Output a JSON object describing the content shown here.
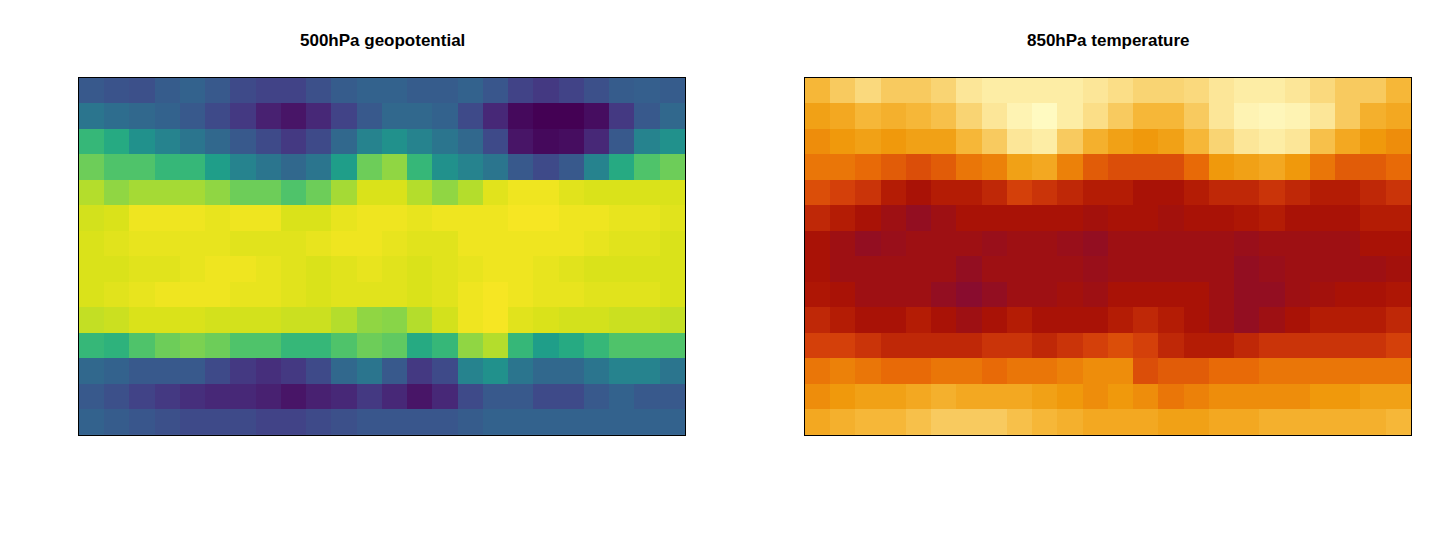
{
  "chart_data": [
    {
      "type": "heatmap",
      "title": "500hPa geopotential",
      "color": "viridis",
      "tick_labels": false,
      "grid": false,
      "zlim": [
        5000,
        5900
      ],
      "z": [
        [
          5250,
          5230,
          5220,
          5260,
          5280,
          5250,
          5200,
          5180,
          5180,
          5220,
          5260,
          5280,
          5280,
          5260,
          5260,
          5280,
          5240,
          5180,
          5150,
          5180,
          5220,
          5260,
          5270,
          5260
        ],
        [
          5350,
          5320,
          5300,
          5280,
          5250,
          5200,
          5150,
          5080,
          5050,
          5100,
          5180,
          5250,
          5300,
          5300,
          5280,
          5200,
          5100,
          5020,
          5000,
          5000,
          5030,
          5150,
          5250,
          5300
        ],
        [
          5600,
          5550,
          5450,
          5400,
          5350,
          5300,
          5250,
          5200,
          5150,
          5200,
          5300,
          5400,
          5450,
          5400,
          5350,
          5300,
          5200,
          5050,
          5020,
          5030,
          5100,
          5250,
          5400,
          5450
        ],
        [
          5700,
          5650,
          5650,
          5600,
          5600,
          5500,
          5400,
          5350,
          5300,
          5350,
          5500,
          5700,
          5750,
          5600,
          5450,
          5400,
          5350,
          5250,
          5200,
          5250,
          5400,
          5550,
          5650,
          5700
        ],
        [
          5800,
          5750,
          5780,
          5780,
          5780,
          5750,
          5700,
          5700,
          5650,
          5700,
          5780,
          5850,
          5850,
          5800,
          5750,
          5800,
          5860,
          5880,
          5880,
          5860,
          5850,
          5850,
          5850,
          5850
        ],
        [
          5840,
          5850,
          5880,
          5880,
          5880,
          5870,
          5880,
          5880,
          5850,
          5850,
          5870,
          5880,
          5880,
          5870,
          5880,
          5880,
          5880,
          5890,
          5890,
          5880,
          5880,
          5870,
          5870,
          5860
        ],
        [
          5850,
          5860,
          5870,
          5870,
          5870,
          5870,
          5860,
          5860,
          5860,
          5870,
          5880,
          5880,
          5870,
          5860,
          5860,
          5880,
          5880,
          5880,
          5880,
          5880,
          5870,
          5860,
          5860,
          5850
        ],
        [
          5850,
          5850,
          5860,
          5860,
          5870,
          5880,
          5880,
          5870,
          5860,
          5850,
          5860,
          5870,
          5860,
          5850,
          5860,
          5870,
          5880,
          5880,
          5870,
          5860,
          5850,
          5850,
          5850,
          5850
        ],
        [
          5850,
          5860,
          5870,
          5880,
          5880,
          5880,
          5870,
          5870,
          5860,
          5850,
          5860,
          5860,
          5860,
          5850,
          5860,
          5880,
          5890,
          5880,
          5870,
          5870,
          5860,
          5860,
          5860,
          5850
        ],
        [
          5820,
          5830,
          5850,
          5850,
          5850,
          5840,
          5840,
          5840,
          5830,
          5830,
          5800,
          5750,
          5740,
          5800,
          5840,
          5880,
          5890,
          5860,
          5850,
          5840,
          5840,
          5830,
          5830,
          5820
        ],
        [
          5600,
          5580,
          5650,
          5700,
          5720,
          5700,
          5650,
          5650,
          5600,
          5600,
          5650,
          5700,
          5680,
          5550,
          5600,
          5750,
          5800,
          5600,
          5500,
          5550,
          5600,
          5650,
          5650,
          5650
        ],
        [
          5300,
          5280,
          5250,
          5250,
          5250,
          5200,
          5150,
          5120,
          5150,
          5200,
          5300,
          5350,
          5250,
          5150,
          5200,
          5400,
          5450,
          5350,
          5300,
          5300,
          5350,
          5400,
          5400,
          5350
        ],
        [
          5250,
          5220,
          5180,
          5150,
          5120,
          5100,
          5100,
          5080,
          5050,
          5080,
          5100,
          5150,
          5100,
          5050,
          5100,
          5200,
          5250,
          5250,
          5200,
          5200,
          5250,
          5280,
          5250,
          5250
        ],
        [
          5280,
          5260,
          5240,
          5220,
          5200,
          5200,
          5200,
          5180,
          5180,
          5200,
          5220,
          5240,
          5240,
          5240,
          5240,
          5260,
          5280,
          5280,
          5280,
          5280,
          5280,
          5280,
          5280,
          5280
        ]
      ]
    },
    {
      "type": "heatmap",
      "title": "850hPa temperature",
      "color": "heat",
      "tick_labels": false,
      "grid": false,
      "zlim": [
        245,
        300
      ],
      "z": [
        [
          262,
          258,
          255,
          258,
          258,
          256,
          252,
          250,
          250,
          250,
          250,
          252,
          254,
          256,
          256,
          255,
          252,
          250,
          250,
          252,
          255,
          258,
          258,
          262
        ],
        [
          268,
          266,
          262,
          264,
          262,
          260,
          256,
          252,
          248,
          246,
          250,
          254,
          258,
          262,
          262,
          258,
          252,
          248,
          247,
          248,
          252,
          258,
          264,
          266
        ],
        [
          272,
          270,
          268,
          270,
          268,
          268,
          262,
          258,
          252,
          250,
          258,
          264,
          268,
          270,
          268,
          262,
          256,
          252,
          250,
          252,
          260,
          266,
          270,
          272
        ],
        [
          276,
          276,
          278,
          280,
          282,
          280,
          276,
          274,
          268,
          266,
          274,
          280,
          282,
          282,
          282,
          278,
          270,
          268,
          266,
          270,
          276,
          280,
          280,
          278
        ],
        [
          282,
          284,
          286,
          290,
          292,
          290,
          290,
          288,
          284,
          286,
          288,
          290,
          290,
          292,
          292,
          290,
          288,
          288,
          286,
          288,
          290,
          290,
          288,
          286
        ],
        [
          288,
          290,
          292,
          294,
          296,
          294,
          292,
          292,
          292,
          292,
          292,
          293,
          292,
          292,
          293,
          292,
          292,
          291,
          290,
          292,
          292,
          292,
          290,
          290
        ],
        [
          292,
          294,
          296,
          295,
          294,
          294,
          294,
          295,
          294,
          294,
          295,
          296,
          294,
          294,
          294,
          294,
          294,
          295,
          294,
          294,
          294,
          294,
          292,
          292
        ],
        [
          292,
          294,
          294,
          294,
          294,
          294,
          296,
          294,
          294,
          294,
          294,
          295,
          294,
          294,
          294,
          294,
          294,
          296,
          295,
          294,
          294,
          294,
          294,
          293
        ],
        [
          291,
          292,
          294,
          294,
          294,
          296,
          298,
          296,
          294,
          294,
          293,
          294,
          292,
          292,
          292,
          292,
          294,
          296,
          296,
          294,
          293,
          292,
          292,
          291
        ],
        [
          288,
          290,
          292,
          292,
          290,
          292,
          294,
          292,
          290,
          292,
          292,
          292,
          290,
          288,
          290,
          292,
          294,
          296,
          294,
          292,
          290,
          290,
          290,
          288
        ],
        [
          284,
          284,
          286,
          288,
          288,
          288,
          288,
          286,
          286,
          288,
          286,
          284,
          282,
          284,
          288,
          290,
          290,
          288,
          286,
          286,
          286,
          286,
          286,
          284
        ],
        [
          276,
          274,
          276,
          278,
          278,
          276,
          276,
          278,
          276,
          276,
          274,
          272,
          272,
          282,
          280,
          280,
          278,
          278,
          276,
          276,
          276,
          276,
          276,
          276
        ],
        [
          272,
          270,
          268,
          268,
          266,
          264,
          266,
          266,
          266,
          268,
          270,
          272,
          270,
          272,
          276,
          274,
          272,
          272,
          272,
          272,
          270,
          270,
          268,
          268
        ],
        [
          266,
          264,
          262,
          262,
          260,
          258,
          258,
          258,
          260,
          262,
          264,
          266,
          266,
          266,
          268,
          268,
          266,
          266,
          264,
          264,
          264,
          264,
          264,
          262
        ]
      ]
    }
  ]
}
